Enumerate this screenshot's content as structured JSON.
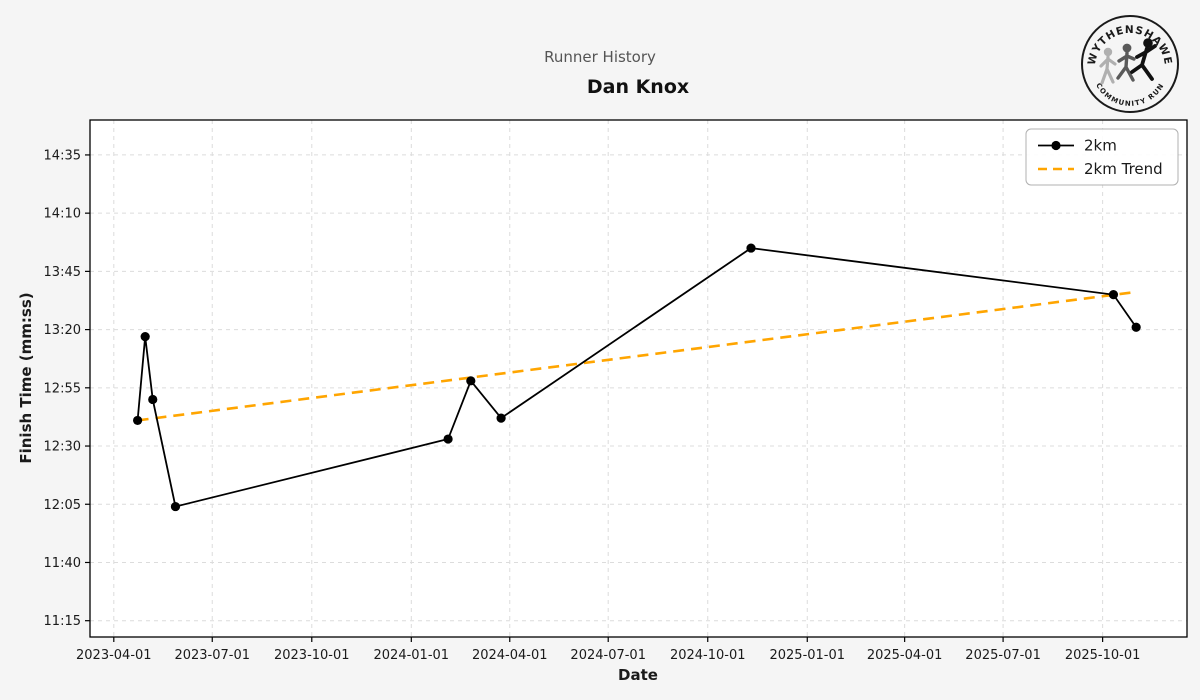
{
  "logo": {
    "top_text": "WYTHENSHAWE",
    "bottom_text": "COMMUNITY RUN"
  },
  "chart_data": {
    "type": "line",
    "title": "Runner History",
    "runner": "Dan Knox",
    "xlabel": "Date",
    "ylabel": "Finish Time (mm:ss)",
    "grid": true,
    "legend_position": "upper right",
    "colors": {
      "series": "#000000",
      "trend": "#FFA500",
      "grid": "#dcdcdc",
      "background": "#f5f5f5",
      "plot_background": "#ffffff",
      "spine": "#000000",
      "tick_label": "#1a1a1a"
    },
    "xlim": [
      "2023-03-10",
      "2025-12-18"
    ],
    "ylim_mmss": [
      "11:08",
      "14:50"
    ],
    "x_ticks": [
      "2023-04-01",
      "2023-07-01",
      "2023-10-01",
      "2024-01-01",
      "2024-04-01",
      "2024-07-01",
      "2024-10-01",
      "2025-01-01",
      "2025-04-01",
      "2025-07-01",
      "2025-10-01"
    ],
    "y_ticks": [
      "11:15",
      "11:40",
      "12:05",
      "12:30",
      "12:55",
      "13:20",
      "13:45",
      "14:10",
      "14:35"
    ],
    "series": [
      {
        "name": "2km",
        "style": "solid",
        "marker": "circle",
        "points": [
          {
            "date": "2023-04-23",
            "time": "12:41"
          },
          {
            "date": "2023-04-30",
            "time": "13:17"
          },
          {
            "date": "2023-05-07",
            "time": "12:50"
          },
          {
            "date": "2023-05-28",
            "time": "12:04"
          },
          {
            "date": "2024-02-04",
            "time": "12:33"
          },
          {
            "date": "2024-02-25",
            "time": "12:58"
          },
          {
            "date": "2024-03-24",
            "time": "12:42"
          },
          {
            "date": "2024-11-10",
            "time": "13:55"
          },
          {
            "date": "2025-10-11",
            "time": "13:35"
          },
          {
            "date": "2025-11-01",
            "time": "13:21"
          }
        ]
      },
      {
        "name": "2km Trend",
        "style": "dashed",
        "marker": "none",
        "points": [
          {
            "date": "2023-04-23",
            "time": "12:41"
          },
          {
            "date": "2025-10-29",
            "time": "13:36"
          }
        ]
      }
    ]
  }
}
